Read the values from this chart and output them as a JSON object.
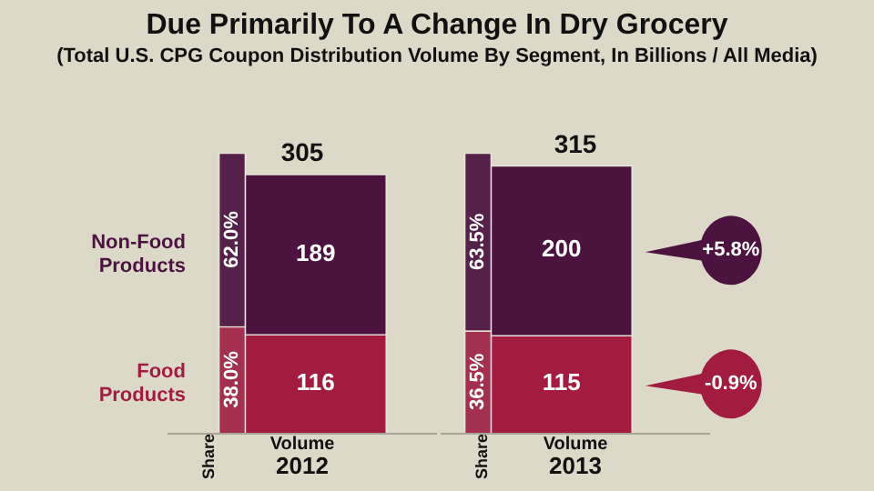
{
  "chart_data": {
    "type": "bar",
    "title": "Due Primarily To A Change In Dry Grocery",
    "subtitle": "(Total U.S. CPG Coupon Distribution Volume By Segment, In Billions / All Media)",
    "categories": [
      "Share",
      "Volume",
      "Share",
      "Volume"
    ],
    "stacked": true,
    "series": [
      {
        "color": "#a3304f",
        "axis": "y2",
        "values": [
          38.0,
          null,
          36.5,
          null
        ],
        "value_labels": [
          "38.0%",
          null,
          "36.5%",
          null
        ]
      },
      {
        "color": "#55204a",
        "axis": "y2",
        "values": [
          62.0,
          null,
          63.5,
          null
        ],
        "value_labels": [
          "62.0%",
          null,
          "63.5%",
          null
        ]
      },
      {
        "name": "Food Products",
        "color": "#a11c3f",
        "values": [
          null,
          116,
          null,
          115
        ],
        "value_labels": [
          null,
          "116",
          null,
          "115"
        ]
      },
      {
        "name": "Non-Food Products",
        "color": "#4c1240",
        "values": [
          null,
          189,
          null,
          200
        ],
        "value_labels": [
          null,
          "189",
          null,
          "200"
        ]
      }
    ],
    "totals": [
      null,
      "305",
      null,
      "315"
    ],
    "ylim": [
      0,
      330
    ],
    "y2lim": [
      0,
      100
    ],
    "tick_labels": "x",
    "grid": false,
    "legend": false,
    "annotations": [
      "2012",
      "2013",
      "+5.8%",
      "-0.9%"
    ]
  }
}
